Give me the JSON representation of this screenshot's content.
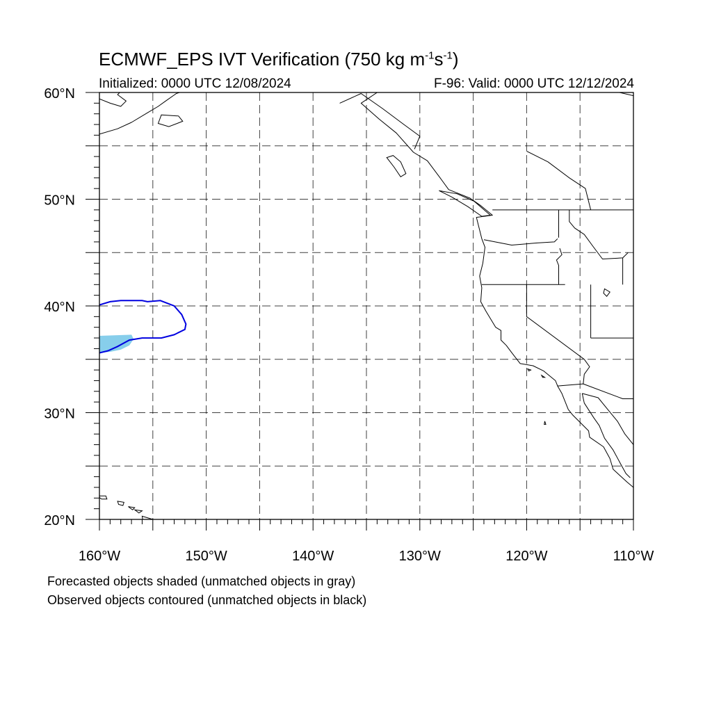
{
  "title": {
    "main": "ECMWF_EPS IVT Verification (750 kg m",
    "sup1": "-1",
    "mid": "s",
    "sup2": "-1",
    "end": ")"
  },
  "subtitle": {
    "initialized": "Initialized: 0000 UTC 12/08/2024",
    "valid": "F-96: Valid: 0000 UTC 12/12/2024"
  },
  "axes": {
    "lat_labels": [
      "60°N",
      "50°N",
      "40°N",
      "30°N",
      "20°N"
    ],
    "lon_labels": [
      "160°W",
      "150°W",
      "140°W",
      "130°W",
      "120°W",
      "110°W"
    ],
    "lon_range": [
      -160,
      -110
    ],
    "lat_range": [
      20,
      60
    ],
    "grid_spacing_deg": 5,
    "grid": true
  },
  "legend": {
    "line1": "Forecasted objects shaded (unmatched objects in gray)",
    "line2": "Observed objects contoured (unmatched objects in black)"
  },
  "colors": {
    "forecast_fill": "#87ceeb",
    "observed_contour": "#0000e0",
    "coastline": "#000000",
    "grid": "#000000"
  },
  "objects": {
    "forecast_shaded": {
      "label": "forecast-ivt-object",
      "polygon_lonlat": [
        [
          -160,
          37.2
        ],
        [
          -157,
          37.3
        ],
        [
          -156.8,
          36.9
        ],
        [
          -157.2,
          36.3
        ],
        [
          -158,
          35.9
        ],
        [
          -159,
          35.7
        ],
        [
          -160,
          35.6
        ]
      ]
    },
    "observed_contour": {
      "label": "observed-ivt-object",
      "polyline_lonlat": [
        [
          -160,
          40.1
        ],
        [
          -159,
          40.4
        ],
        [
          -158,
          40.5
        ],
        [
          -156,
          40.5
        ],
        [
          -155.5,
          40.4
        ],
        [
          -154.3,
          40.5
        ],
        [
          -153,
          40
        ],
        [
          -152.3,
          39.2
        ],
        [
          -151.9,
          38.3
        ],
        [
          -152,
          37.8
        ],
        [
          -153,
          37.3
        ],
        [
          -154.2,
          37
        ],
        [
          -156,
          37
        ],
        [
          -157.2,
          36.8
        ],
        [
          -158.3,
          36.2
        ],
        [
          -159.2,
          35.8
        ],
        [
          -160,
          35.6
        ]
      ]
    }
  },
  "geo": {
    "coast_main": [
      [
        -134,
        60
      ],
      [
        -135.5,
        59
      ],
      [
        -133.8,
        57.5
      ],
      [
        -132.2,
        56.2
      ],
      [
        -130.6,
        54.4
      ],
      [
        -129.3,
        53.6
      ],
      [
        -128.1,
        52
      ],
      [
        -127.3,
        50.9
      ],
      [
        -125.3,
        50.1
      ],
      [
        -124.3,
        49.4
      ],
      [
        -123.2,
        48.5
      ],
      [
        -124.7,
        48.3
      ],
      [
        -124.2,
        46.3
      ],
      [
        -123.9,
        45.5
      ],
      [
        -124.1,
        44
      ],
      [
        -124.4,
        42.8
      ],
      [
        -124.2,
        41.7
      ],
      [
        -124.3,
        40.4
      ],
      [
        -123.8,
        39.5
      ],
      [
        -122.9,
        38
      ],
      [
        -122.4,
        37.7
      ],
      [
        -122.4,
        36.8
      ],
      [
        -121.9,
        36.3
      ],
      [
        -121.3,
        35.5
      ],
      [
        -120.6,
        34.6
      ],
      [
        -119.4,
        34.4
      ],
      [
        -118.4,
        33.9
      ],
      [
        -117.3,
        33
      ],
      [
        -117.1,
        32.5
      ],
      [
        -116.7,
        31.8
      ],
      [
        -116.1,
        30.3
      ],
      [
        -115.7,
        29.8
      ],
      [
        -114.2,
        28.3
      ],
      [
        -114.1,
        27.7
      ],
      [
        -112.8,
        26.8
      ],
      [
        -112.2,
        25.7
      ],
      [
        -111.9,
        24.7
      ],
      [
        -110.6,
        23.5
      ],
      [
        -110,
        23
      ]
    ],
    "baja_gulf_side": [
      [
        -114.8,
        31.8
      ],
      [
        -114.6,
        30.9
      ],
      [
        -113.7,
        29.5
      ],
      [
        -113.2,
        28.8
      ],
      [
        -112.7,
        27.6
      ],
      [
        -111.9,
        26.5
      ],
      [
        -111.2,
        25.2
      ],
      [
        -110.7,
        24.3
      ],
      [
        -110.3,
        23.9
      ]
    ],
    "mainland_gulf": [
      [
        -114.8,
        31.8
      ],
      [
        -113.3,
        31.4
      ],
      [
        -112.4,
        30.3
      ],
      [
        -111.5,
        29.2
      ],
      [
        -110.8,
        28
      ],
      [
        -110,
        27
      ]
    ],
    "kodiak_coast": [
      [
        -160,
        56.1
      ],
      [
        -158.3,
        56.6
      ],
      [
        -157,
        57.2
      ],
      [
        -155.5,
        58.1
      ],
      [
        -154.5,
        58.7
      ],
      [
        -153.8,
        59.2
      ],
      [
        -152.8,
        59.9
      ],
      [
        -152.5,
        60
      ]
    ],
    "upper_left_coast": [
      [
        -160,
        59.4
      ],
      [
        -159,
        59.0
      ],
      [
        -158,
        58.7
      ],
      [
        -157.5,
        59.2
      ],
      [
        -158.3,
        59.8
      ],
      [
        -158.1,
        60
      ]
    ],
    "kodiak_island": [
      [
        -154.2,
        57.9
      ],
      [
        -152.6,
        57.8
      ],
      [
        -152.2,
        57.3
      ],
      [
        -153.5,
        56.8
      ],
      [
        -154.5,
        57.1
      ],
      [
        -154.2,
        57.9
      ]
    ],
    "haida_gwaii": [
      [
        -132.5,
        54.1
      ],
      [
        -131.8,
        53.5
      ],
      [
        -131.3,
        52.4
      ],
      [
        -131.8,
        52.1
      ],
      [
        -132.4,
        53
      ],
      [
        -133.1,
        53.9
      ],
      [
        -132.5,
        54.1
      ]
    ],
    "vancouver_is": [
      [
        -128.2,
        50.8
      ],
      [
        -127,
        50.2
      ],
      [
        -125.5,
        49.3
      ],
      [
        -124.2,
        48.4
      ],
      [
        -123.4,
        48.5
      ],
      [
        -124.9,
        49.8
      ],
      [
        -126.5,
        50.5
      ],
      [
        -128.2,
        50.8
      ]
    ],
    "hawaii": [
      [
        [
          -160.2,
          22.2
        ],
        [
          -159.4,
          22.2
        ],
        [
          -159.3,
          21.9
        ],
        [
          -159.8,
          21.9
        ],
        [
          -160.2,
          22.2
        ]
      ],
      [
        [
          -158.3,
          21.7
        ],
        [
          -157.7,
          21.6
        ],
        [
          -157.8,
          21.3
        ],
        [
          -158.2,
          21.4
        ],
        [
          -158.3,
          21.7
        ]
      ],
      [
        [
          -157.3,
          21.2
        ],
        [
          -156.7,
          21.1
        ],
        [
          -156.9,
          20.9
        ],
        [
          -157.3,
          21.2
        ]
      ],
      [
        [
          -156.7,
          20.9
        ],
        [
          -156,
          20.8
        ],
        [
          -156.3,
          20.6
        ],
        [
          -156.7,
          20.9
        ]
      ],
      [
        [
          -156,
          20.3
        ],
        [
          -155,
          20
        ],
        [
          -155.2,
          19.5
        ],
        [
          -155.8,
          19.2
        ],
        [
          -156,
          20.3
        ]
      ]
    ],
    "channel_islands": [
      [
        [
          -119.9,
          34.1
        ],
        [
          -119.6,
          34
        ],
        [
          -119.8,
          33.9
        ],
        [
          -119.9,
          34.1
        ]
      ],
      [
        [
          -118.6,
          33.5
        ],
        [
          -118.3,
          33.3
        ],
        [
          -118.5,
          33.3
        ],
        [
          -118.6,
          33.5
        ]
      ]
    ],
    "guadalupe_is": [
      [
        [
          -118.3,
          29.2
        ],
        [
          -118.2,
          28.9
        ],
        [
          -118.35,
          28.9
        ],
        [
          -118.3,
          29.2
        ]
      ]
    ],
    "canada_us_border": [
      [
        -123.2,
        49
      ],
      [
        -110,
        49
      ]
    ],
    "or_wa_border": [
      [
        -124,
        46.2
      ],
      [
        -121.4,
        45.7
      ],
      [
        -119,
        45.9
      ],
      [
        -117.4,
        46
      ],
      [
        -117.1,
        46.3
      ]
    ],
    "wa_id_border": [
      [
        -117,
        49
      ],
      [
        -117,
        46.4
      ]
    ],
    "or_ca_border": [
      [
        -124.2,
        42
      ],
      [
        -116.4,
        42
      ]
    ],
    "or_id_border": [
      [
        -116.9,
        45.4
      ],
      [
        -116.7,
        44.8
      ],
      [
        -117.2,
        44.3
      ],
      [
        -117,
        43.8
      ],
      [
        -117,
        42
      ]
    ],
    "id_mt_border": [
      [
        -116,
        49
      ],
      [
        -116,
        47.9
      ],
      [
        -115.5,
        47.3
      ],
      [
        -114.6,
        46.7
      ],
      [
        -113.8,
        45.6
      ],
      [
        -112.9,
        44.4
      ],
      [
        -111,
        44.5
      ],
      [
        -110.5,
        45
      ]
    ],
    "id_wy_border": [
      [
        -111,
        44.5
      ],
      [
        -111,
        42
      ]
    ],
    "nv_ut_border": [
      [
        -114,
        42
      ],
      [
        -114,
        37
      ]
    ],
    "ut_az_border": [
      [
        -114,
        37
      ],
      [
        -110,
        37
      ]
    ],
    "ca_nv_border": [
      [
        -120,
        42
      ],
      [
        -120,
        39
      ],
      [
        -114.6,
        35
      ]
    ],
    "az_ca_border": [
      [
        -114.6,
        35
      ],
      [
        -114.1,
        34.3
      ],
      [
        -114.6,
        33.6
      ],
      [
        -114.7,
        32.7
      ]
    ],
    "us_mexico_border": [
      [
        -117.1,
        32.5
      ],
      [
        -114.7,
        32.7
      ],
      [
        -111,
        31.3
      ],
      [
        -110,
        31.3
      ]
    ],
    "great_salt_lake": [
      [
        -112.7,
        41.6
      ],
      [
        -112.2,
        41.3
      ],
      [
        -112.5,
        40.9
      ],
      [
        -112.8,
        41.2
      ],
      [
        -112.7,
        41.6
      ]
    ],
    "bc_rockies": [
      [
        -120,
        54.5
      ],
      [
        -118,
        53.5
      ],
      [
        -116,
        52
      ],
      [
        -114.5,
        51
      ],
      [
        -114,
        49
      ]
    ],
    "se_alaska_border": [
      [
        -137.5,
        59
      ],
      [
        -135.5,
        59.9
      ],
      [
        -133.5,
        58.5
      ],
      [
        -131.5,
        57
      ],
      [
        -130,
        55.9
      ],
      [
        -130.5,
        54.7
      ]
    ],
    "rocky_top": [
      [
        -110,
        59.7
      ],
      [
        -111.3,
        60
      ]
    ]
  }
}
